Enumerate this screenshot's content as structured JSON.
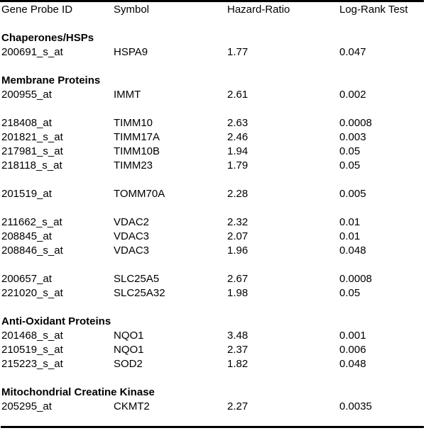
{
  "page": {
    "background_color": "#ffffff",
    "text_color": "#000000",
    "rule_color": "#000000"
  },
  "table": {
    "header": {
      "col1": "Gene Probe ID",
      "col2": "Symbol",
      "col3": "Hazard-Ratio",
      "col4": "Log-Rank Test"
    },
    "sections": [
      {
        "title": "Chaperones/HSPs",
        "groups": [
          [
            {
              "probe_id": "200691_s_at",
              "symbol": "HSPA9",
              "hazard_ratio": "1.77",
              "log_rank": "0.047"
            }
          ]
        ]
      },
      {
        "title": "Membrane Proteins",
        "groups": [
          [
            {
              "probe_id": "200955_at",
              "symbol": "IMMT",
              "hazard_ratio": "2.61",
              "log_rank": "0.002"
            }
          ],
          [
            {
              "probe_id": "218408_at",
              "symbol": "TIMM10",
              "hazard_ratio": "2.63",
              "log_rank": "0.0008"
            },
            {
              "probe_id": "201821_s_at",
              "symbol": "TIMM17A",
              "hazard_ratio": "2.46",
              "log_rank": "0.003"
            },
            {
              "probe_id": "217981_s_at",
              "symbol": "TIMM10B",
              "hazard_ratio": "1.94",
              "log_rank": "0.05"
            },
            {
              "probe_id": "218118_s_at",
              "symbol": "TIMM23",
              "hazard_ratio": "1.79",
              "log_rank": "0.05"
            }
          ],
          [
            {
              "probe_id": "201519_at",
              "symbol": "TOMM70A",
              "hazard_ratio": "2.28",
              "log_rank": "0.005"
            }
          ],
          [
            {
              "probe_id": "211662_s_at",
              "symbol": "VDAC2",
              "hazard_ratio": "2.32",
              "log_rank": "0.01"
            },
            {
              "probe_id": "208845_at",
              "symbol": "VDAC3",
              "hazard_ratio": "2.07",
              "log_rank": "0.01"
            },
            {
              "probe_id": "208846_s_at",
              "symbol": "VDAC3",
              "hazard_ratio": "1.96",
              "log_rank": "0.048"
            }
          ],
          [
            {
              "probe_id": "200657_at",
              "symbol": "SLC25A5",
              "hazard_ratio": "2.67",
              "log_rank": "0.0008"
            },
            {
              "probe_id": "221020_s_at",
              "symbol": "SLC25A32",
              "hazard_ratio": "1.98",
              "log_rank": "0.05"
            }
          ]
        ]
      },
      {
        "title": "Anti-Oxidant Proteins",
        "groups": [
          [
            {
              "probe_id": "201468_s_at",
              "symbol": "NQO1",
              "hazard_ratio": "3.48",
              "log_rank": "0.001"
            },
            {
              "probe_id": "210519_s_at",
              "symbol": "NQO1",
              "hazard_ratio": "2.37",
              "log_rank": "0.006"
            },
            {
              "probe_id": "215223_s_at",
              "symbol": "SOD2",
              "hazard_ratio": "1.82",
              "log_rank": "0.048"
            }
          ]
        ]
      },
      {
        "title": "Mitochondrial Creatine Kinase",
        "groups": [
          [
            {
              "probe_id": "205295_at",
              "symbol": "CKMT2",
              "hazard_ratio": "2.27",
              "log_rank": "0.0035"
            }
          ]
        ]
      }
    ]
  }
}
